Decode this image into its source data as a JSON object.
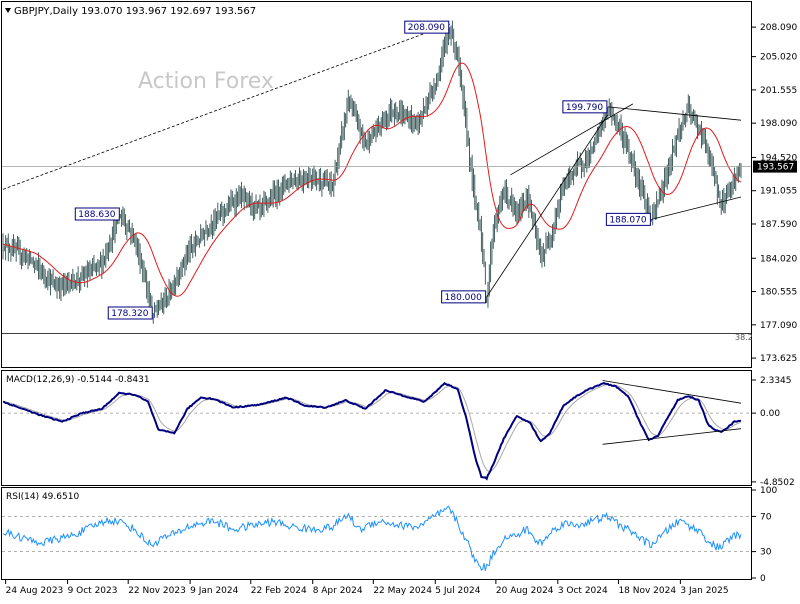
{
  "header": {
    "symbol_line": "GBPJPY,Daily  193.070 193.967 192.697 193.567",
    "watermark": "Action Forex"
  },
  "colors": {
    "candle": "#2f4f4f",
    "ma": "#e31b1b",
    "macd_main": "#000080",
    "macd_signal": "#a9a9a9",
    "rsi": "#1e90ff",
    "label_border": "#000080",
    "grid": "#999999"
  },
  "chart_data": [
    {
      "type": "candlestick",
      "title": "GBPJPY,Daily",
      "ohlc_last": {
        "open": 193.07,
        "high": 193.967,
        "low": 192.697,
        "close": 193.567
      },
      "y_ticks": [
        "208.090",
        "205.020",
        "201.555",
        "198.090",
        "194.520",
        "191.055",
        "187.590",
        "184.020",
        "180.555",
        "177.090",
        "173.625"
      ],
      "ylim": [
        172.8,
        210.5
      ],
      "x_ticks": [
        "24 Aug 2023",
        "9 Oct 2023",
        "22 Nov 2023",
        "9 Jan 2024",
        "22 Feb 2024",
        "8 Apr 2024",
        "22 May 2024",
        "5 Jul 2024",
        "20 Aug 2024",
        "3 Oct 2024",
        "18 Nov 2024",
        "3 Jan 2025"
      ],
      "current_price": "193.567",
      "fib_label": "38.2",
      "fib_level": 176.2,
      "annotations": [
        {
          "text": "208.090",
          "value": 208.09,
          "index": 339
        },
        {
          "text": "188.630",
          "value": 188.63,
          "index": 89
        },
        {
          "text": "178.320",
          "value": 178.32,
          "index": 114
        },
        {
          "text": "180.000",
          "value": 180.0,
          "index": 367
        },
        {
          "text": "199.790",
          "value": 199.79,
          "index": 459
        },
        {
          "text": "188.070",
          "value": 188.07,
          "index": 492
        }
      ],
      "anchors": [
        [
          0,
          185.5
        ],
        [
          20,
          184.0
        ],
        [
          40,
          181.0
        ],
        [
          60,
          182.0
        ],
        [
          75,
          183.5
        ],
        [
          89,
          188.63
        ],
        [
          100,
          186.0
        ],
        [
          114,
          178.32
        ],
        [
          125,
          180.0
        ],
        [
          140,
          184.5
        ],
        [
          160,
          188.0
        ],
        [
          180,
          190.5
        ],
        [
          195,
          189.0
        ],
        [
          215,
          192.0
        ],
        [
          235,
          192.5
        ],
        [
          250,
          191.5
        ],
        [
          262,
          200.5
        ],
        [
          275,
          196.0
        ],
        [
          295,
          199.5
        ],
        [
          315,
          198.0
        ],
        [
          330,
          203.0
        ],
        [
          339,
          208.09
        ],
        [
          345,
          205.0
        ],
        [
          352,
          197.0
        ],
        [
          358,
          190.0
        ],
        [
          362,
          187.5
        ],
        [
          367,
          180.0
        ],
        [
          372,
          187.0
        ],
        [
          380,
          191.0
        ],
        [
          390,
          188.5
        ],
        [
          398,
          190.5
        ],
        [
          408,
          184.0
        ],
        [
          415,
          186.0
        ],
        [
          425,
          191.5
        ],
        [
          435,
          193.5
        ],
        [
          445,
          194.5
        ],
        [
          459,
          199.79
        ],
        [
          468,
          197.5
        ],
        [
          475,
          195.0
        ],
        [
          485,
          191.0
        ],
        [
          492,
          188.07
        ],
        [
          500,
          191.0
        ],
        [
          512,
          197.0
        ],
        [
          520,
          199.5
        ],
        [
          530,
          197.0
        ],
        [
          538,
          193.5
        ],
        [
          545,
          189.5
        ],
        [
          552,
          191.5
        ],
        [
          557,
          192.8
        ],
        [
          560,
          193.57
        ]
      ]
    },
    {
      "type": "line",
      "title": "MACD(12,26,9) -0.5144 -0.8431",
      "y_ticks": [
        "2.3345",
        "0.00",
        "-4.8502"
      ],
      "ylim": [
        -5.0,
        2.9
      ],
      "series": [
        {
          "name": "MACD"
        },
        {
          "name": "Signal"
        }
      ],
      "anchors": [
        [
          0,
          0.8
        ],
        [
          15,
          0.3
        ],
        [
          30,
          -0.2
        ],
        [
          45,
          -0.6
        ],
        [
          60,
          0.0
        ],
        [
          75,
          0.3
        ],
        [
          88,
          1.4
        ],
        [
          100,
          1.3
        ],
        [
          110,
          0.8
        ],
        [
          118,
          -1.2
        ],
        [
          130,
          -1.4
        ],
        [
          140,
          0.3
        ],
        [
          150,
          1.1
        ],
        [
          160,
          1.0
        ],
        [
          175,
          0.4
        ],
        [
          195,
          0.6
        ],
        [
          215,
          1.1
        ],
        [
          230,
          0.5
        ],
        [
          245,
          0.4
        ],
        [
          260,
          0.9
        ],
        [
          275,
          0.3
        ],
        [
          290,
          1.6
        ],
        [
          305,
          1.2
        ],
        [
          320,
          0.8
        ],
        [
          335,
          2.1
        ],
        [
          345,
          1.7
        ],
        [
          352,
          -0.5
        ],
        [
          358,
          -3.0
        ],
        [
          363,
          -4.5
        ],
        [
          367,
          -4.6
        ],
        [
          372,
          -3.6
        ],
        [
          380,
          -1.8
        ],
        [
          390,
          -0.2
        ],
        [
          400,
          -0.7
        ],
        [
          408,
          -2.0
        ],
        [
          415,
          -1.4
        ],
        [
          425,
          0.5
        ],
        [
          435,
          1.2
        ],
        [
          445,
          1.7
        ],
        [
          455,
          2.1
        ],
        [
          465,
          1.9
        ],
        [
          475,
          1.1
        ],
        [
          482,
          -0.4
        ],
        [
          490,
          -1.9
        ],
        [
          497,
          -1.6
        ],
        [
          505,
          -0.2
        ],
        [
          512,
          0.9
        ],
        [
          520,
          1.2
        ],
        [
          528,
          0.9
        ],
        [
          535,
          -0.8
        ],
        [
          540,
          -1.2
        ],
        [
          545,
          -1.3
        ],
        [
          550,
          -1.0
        ],
        [
          555,
          -0.6
        ],
        [
          560,
          -0.51
        ]
      ],
      "last_main": -0.5144,
      "last_signal": -0.8431
    },
    {
      "type": "line",
      "title": "RSI(14) 49.6510",
      "y_ticks": [
        "100",
        "70",
        "30",
        "0"
      ],
      "ylim": [
        0,
        100
      ],
      "levels": [
        70,
        30
      ],
      "series": [
        {
          "name": "RSI"
        }
      ],
      "anchors": [
        [
          0,
          52
        ],
        [
          10,
          48
        ],
        [
          20,
          43
        ],
        [
          30,
          40
        ],
        [
          40,
          44
        ],
        [
          50,
          47
        ],
        [
          60,
          53
        ],
        [
          70,
          60
        ],
        [
          80,
          66
        ],
        [
          89,
          64
        ],
        [
          100,
          55
        ],
        [
          110,
          40
        ],
        [
          114,
          38
        ],
        [
          120,
          45
        ],
        [
          130,
          50
        ],
        [
          140,
          58
        ],
        [
          150,
          62
        ],
        [
          160,
          65
        ],
        [
          175,
          55
        ],
        [
          190,
          60
        ],
        [
          205,
          64
        ],
        [
          220,
          58
        ],
        [
          235,
          55
        ],
        [
          250,
          58
        ],
        [
          262,
          72
        ],
        [
          270,
          55
        ],
        [
          285,
          65
        ],
        [
          300,
          60
        ],
        [
          315,
          58
        ],
        [
          330,
          72
        ],
        [
          339,
          79
        ],
        [
          345,
          62
        ],
        [
          352,
          42
        ],
        [
          358,
          20
        ],
        [
          363,
          13
        ],
        [
          367,
          12
        ],
        [
          372,
          28
        ],
        [
          380,
          45
        ],
        [
          390,
          48
        ],
        [
          398,
          56
        ],
        [
          405,
          40
        ],
        [
          410,
          42
        ],
        [
          418,
          55
        ],
        [
          425,
          62
        ],
        [
          435,
          60
        ],
        [
          445,
          64
        ],
        [
          459,
          70
        ],
        [
          468,
          60
        ],
        [
          478,
          52
        ],
        [
          486,
          42
        ],
        [
          492,
          38
        ],
        [
          500,
          48
        ],
        [
          508,
          60
        ],
        [
          515,
          65
        ],
        [
          522,
          58
        ],
        [
          530,
          52
        ],
        [
          536,
          40
        ],
        [
          541,
          35
        ],
        [
          545,
          36
        ],
        [
          550,
          42
        ],
        [
          555,
          48
        ],
        [
          560,
          49.65
        ]
      ],
      "last_value": 49.651
    }
  ]
}
